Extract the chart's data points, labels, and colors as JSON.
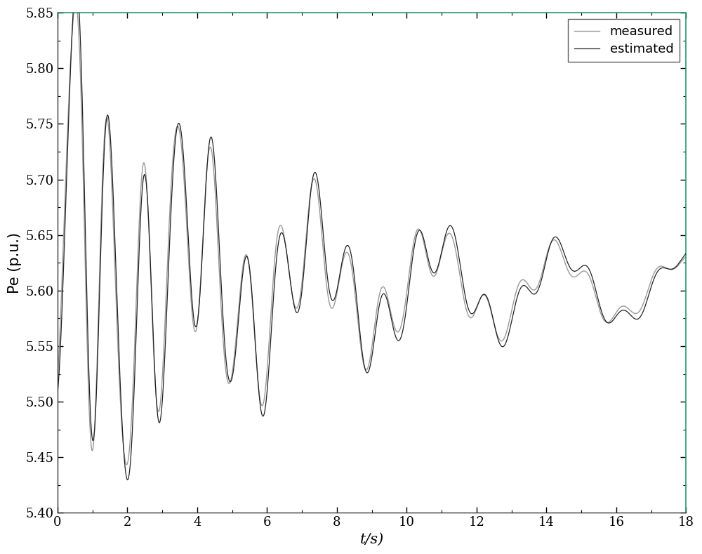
{
  "title": "",
  "xlabel": "t/s)",
  "ylabel": "Pe (p.u.)",
  "xlim": [
    0,
    18
  ],
  "ylim": [
    5.4,
    5.85
  ],
  "yticks": [
    5.4,
    5.45,
    5.5,
    5.55,
    5.6,
    5.65,
    5.7,
    5.75,
    5.8,
    5.85
  ],
  "xticks": [
    0,
    2,
    4,
    6,
    8,
    10,
    12,
    14,
    16,
    18
  ],
  "measured_color": "#999999",
  "estimated_color": "#222222",
  "background_color": "#ffffff",
  "legend_labels": [
    "measured",
    "estimated"
  ],
  "figsize": [
    10.0,
    7.89
  ],
  "dpi": 100,
  "spine_right_color": "#2a9a70",
  "spine_top_color": "#2a9a70",
  "baseline": 5.603,
  "f_local": 1.02,
  "f_inter": 0.285,
  "A_local": 0.2,
  "A_inter": 0.065,
  "d_local": 0.19,
  "d_inter": 0.055,
  "phi_local": -1.57,
  "phi_inter": 1.05
}
